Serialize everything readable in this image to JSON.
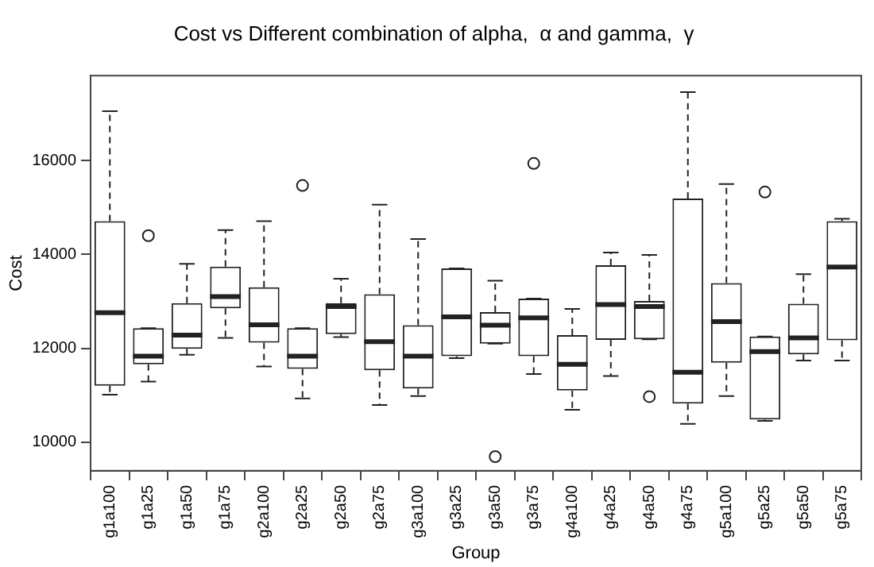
{
  "chart_data": {
    "type": "box",
    "title": "Cost vs Different combination of alpha,  α and gamma,  γ",
    "xlabel": "Group",
    "ylabel": "Cost",
    "categories": [
      "g1a100",
      "g1a25",
      "g1a50",
      "g1a75",
      "g2a100",
      "g2a25",
      "g2a50",
      "g2a75",
      "g3a100",
      "g3a25",
      "g3a50",
      "g3a75",
      "g4a100",
      "g4a25",
      "g4a50",
      "g4a75",
      "g5a100",
      "g5a25",
      "g5a50",
      "g5a75"
    ],
    "boxes": [
      {
        "low": 11010,
        "q1": 11200,
        "median": 12760,
        "q3": 14710,
        "high": 17055
      },
      {
        "low": 11290,
        "q1": 11660,
        "median": 11830,
        "q3": 12430,
        "high": 12430,
        "outliers": [
          14400
        ]
      },
      {
        "low": 11860,
        "q1": 11990,
        "median": 12280,
        "q3": 12960,
        "high": 13800
      },
      {
        "low": 12220,
        "q1": 12850,
        "median": 13100,
        "q3": 13740,
        "high": 14520
      },
      {
        "low": 11610,
        "q1": 12120,
        "median": 12500,
        "q3": 13300,
        "high": 14710
      },
      {
        "low": 10930,
        "q1": 11560,
        "median": 11830,
        "q3": 12430,
        "high": 12430,
        "outliers": [
          15470
        ]
      },
      {
        "low": 12240,
        "q1": 12300,
        "median": 12890,
        "q3": 12960,
        "high": 13480
      },
      {
        "low": 10790,
        "q1": 11530,
        "median": 12140,
        "q3": 13150,
        "high": 15060
      },
      {
        "low": 10980,
        "q1": 11140,
        "median": 11830,
        "q3": 12490,
        "high": 14330
      },
      {
        "low": 11790,
        "q1": 11830,
        "median": 12670,
        "q3": 13700,
        "high": 13700
      },
      {
        "low": 12100,
        "q1": 12100,
        "median": 12490,
        "q3": 12770,
        "high": 13440,
        "outliers": [
          9690
        ]
      },
      {
        "low": 11450,
        "q1": 11830,
        "median": 12650,
        "q3": 13060,
        "high": 13060,
        "outliers": [
          15940
        ]
      },
      {
        "low": 10690,
        "q1": 11100,
        "median": 11660,
        "q3": 12280,
        "high": 12840
      },
      {
        "low": 11410,
        "q1": 12180,
        "median": 12930,
        "q3": 13770,
        "high": 14040
      },
      {
        "low": 12190,
        "q1": 12190,
        "median": 12890,
        "q3": 13010,
        "high": 13990,
        "outliers": [
          10970
        ]
      },
      {
        "low": 10390,
        "q1": 10820,
        "median": 11490,
        "q3": 15190,
        "high": 17460
      },
      {
        "low": 10980,
        "q1": 11690,
        "median": 12570,
        "q3": 13390,
        "high": 15500
      },
      {
        "low": 10450,
        "q1": 10480,
        "median": 11930,
        "q3": 12250,
        "high": 12250,
        "outliers": [
          15330
        ]
      },
      {
        "low": 11740,
        "q1": 11870,
        "median": 12220,
        "q3": 12950,
        "high": 13580
      },
      {
        "low": 11740,
        "q1": 12170,
        "median": 13730,
        "q3": 14710,
        "high": 14760
      }
    ],
    "ylim": [
      9388,
      17812
    ],
    "yticks": [
      10000,
      12000,
      14000,
      16000
    ],
    "grid": false,
    "legend": false
  }
}
